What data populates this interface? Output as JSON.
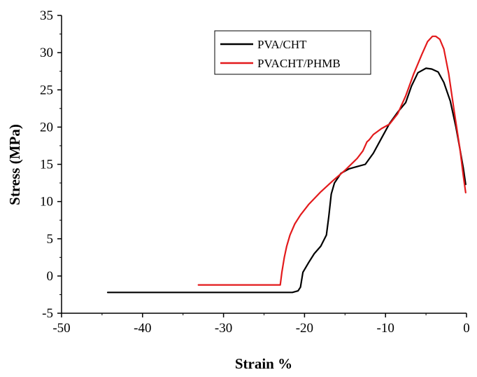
{
  "chart_data": {
    "type": "line",
    "title": "",
    "xlabel": "Strain %",
    "ylabel": "Stress (MPa)",
    "xlim": [
      -50,
      0
    ],
    "ylim": [
      -5,
      35
    ],
    "xticks": [
      -50,
      -40,
      -30,
      -20,
      -10,
      0
    ],
    "yticks": [
      -5,
      0,
      5,
      10,
      15,
      20,
      25,
      30,
      35
    ],
    "grid": false,
    "legend_position": "top-center",
    "series": [
      {
        "name": "PVA/CHT",
        "color": "#000000",
        "x": [
          -44.3,
          -30,
          -21.5,
          -20.8,
          -20.5,
          -20.2,
          -19.5,
          -18.8,
          -18.0,
          -17.3,
          -17.0,
          -16.7,
          -16.3,
          -15.5,
          -14.5,
          -13.5,
          -12.5,
          -11.5,
          -10.5,
          -9.5,
          -8.5,
          -7.5,
          -6.8,
          -6.0,
          -5.0,
          -4.3,
          -3.5,
          -2.8,
          -2.0,
          -1.3,
          -0.8,
          -0.4,
          -0.1
        ],
        "y": [
          -2.2,
          -2.2,
          -2.2,
          -2.0,
          -1.5,
          0.5,
          1.8,
          3.0,
          4.0,
          5.5,
          8.0,
          11.0,
          12.5,
          13.8,
          14.4,
          14.7,
          15.0,
          16.5,
          18.5,
          20.5,
          22.0,
          23.3,
          25.5,
          27.3,
          27.9,
          27.8,
          27.4,
          26.0,
          23.5,
          20.0,
          17.0,
          14.5,
          12.3
        ]
      },
      {
        "name": "PVACHT/PHMB",
        "color": "#e31a1c",
        "x": [
          -33.1,
          -28,
          -23.0,
          -22.8,
          -22.5,
          -22.2,
          -21.8,
          -21.2,
          -20.5,
          -19.5,
          -18.0,
          -16.5,
          -15.0,
          -13.5,
          -12.8,
          -12.3,
          -12.0,
          -11.5,
          -10.5,
          -9.5,
          -8.5,
          -7.5,
          -6.5,
          -5.5,
          -4.8,
          -4.2,
          -3.8,
          -3.3,
          -2.8,
          -2.2,
          -1.5,
          -0.8,
          -0.4,
          -0.1
        ],
        "y": [
          -1.2,
          -1.2,
          -1.2,
          0.5,
          2.5,
          4.0,
          5.5,
          7.0,
          8.2,
          9.6,
          11.3,
          12.8,
          14.2,
          15.8,
          16.8,
          18.0,
          18.3,
          19.0,
          19.8,
          20.4,
          21.8,
          24.2,
          27.2,
          29.8,
          31.5,
          32.2,
          32.2,
          31.8,
          30.5,
          27.2,
          22.0,
          17.0,
          13.5,
          11.2
        ]
      }
    ]
  }
}
